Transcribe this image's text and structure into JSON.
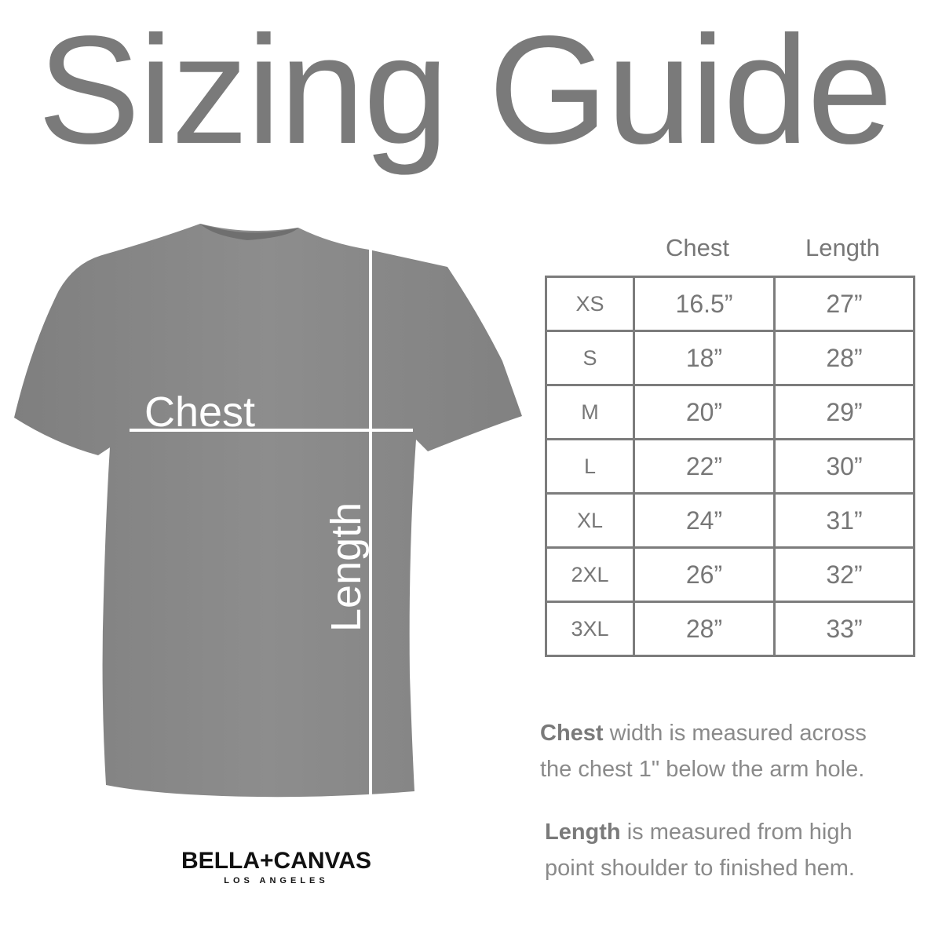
{
  "title": "Sizing Guide",
  "shirt": {
    "color": "#8a8a8a",
    "chest_label": "Chest",
    "length_label": "Length"
  },
  "table": {
    "headers": [
      "Chest",
      "Length"
    ],
    "rows": [
      {
        "size": "XS",
        "chest": "16.5”",
        "length": "27”"
      },
      {
        "size": "S",
        "chest": "18”",
        "length": "28”"
      },
      {
        "size": "M",
        "chest": "20”",
        "length": "29”"
      },
      {
        "size": "L",
        "chest": "22”",
        "length": "30”"
      },
      {
        "size": "XL",
        "chest": "24”",
        "length": "31”"
      },
      {
        "size": "2XL",
        "chest": "26”",
        "length": "32”"
      },
      {
        "size": "3XL",
        "chest": "28”",
        "length": "33”"
      }
    ]
  },
  "notes": [
    {
      "bold": "Chest",
      "line1": " width is measured across",
      "line2": "the chest 1\" below the arm hole."
    },
    {
      "bold": "Length",
      "line1": " is measured from high",
      "line2": "point shoulder to finished hem."
    }
  ],
  "logo": {
    "brand": "BELLA+CANVAS",
    "sub": "LOS ANGELES"
  }
}
